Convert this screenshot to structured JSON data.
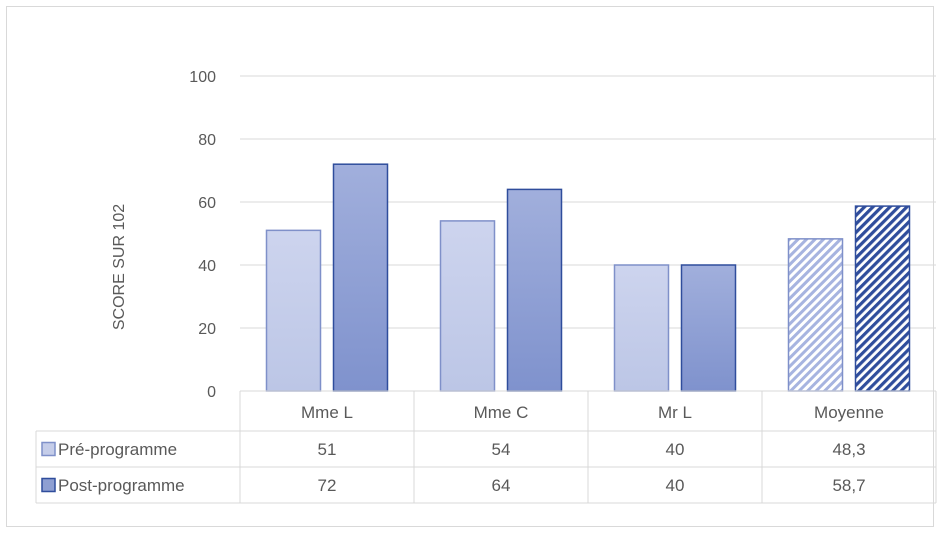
{
  "chart_data": {
    "type": "bar",
    "title": "",
    "xlabel": "",
    "ylabel": "SCORE SUR 102",
    "ylim": [
      0,
      100
    ],
    "yticks": [
      0,
      20,
      40,
      60,
      80,
      100
    ],
    "grid": true,
    "categories": [
      "Mme L",
      "Mme C",
      "Mr L",
      "Moyenne"
    ],
    "series": [
      {
        "name": "Pré-programme",
        "values": [
          51,
          54,
          40,
          48.3
        ],
        "value_labels": [
          "51",
          "54",
          "40",
          "48,3"
        ],
        "fill": "#c5cde9",
        "stroke": "#7f90c9"
      },
      {
        "name": "Post-programme",
        "values": [
          72,
          64,
          40,
          58.7
        ],
        "value_labels": [
          "72",
          "64",
          "40",
          "58,7"
        ],
        "fill": "#8e9fd2",
        "stroke": "#2f4d9c"
      }
    ],
    "hatched_categories": [
      "Moyenne"
    ],
    "data_table": true,
    "legend": "in data table"
  }
}
